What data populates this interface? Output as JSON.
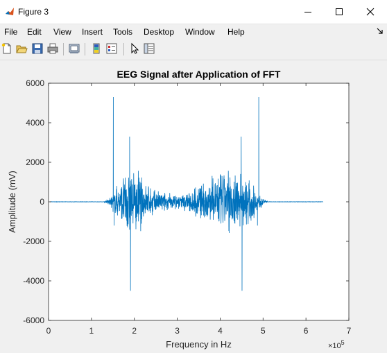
{
  "window": {
    "title": "Figure 3",
    "minimize_icon": "minimize-icon",
    "maximize_icon": "maximize-icon",
    "close_icon": "close-icon"
  },
  "menu": {
    "items": [
      "File",
      "Edit",
      "View",
      "Insert",
      "Tools",
      "Desktop",
      "Window",
      "Help"
    ]
  },
  "toolbar": {
    "icons": [
      "new-figure-icon",
      "open-file-icon",
      "save-icon",
      "print-icon",
      "link-plot-icon",
      "colorbar-icon",
      "legend-icon",
      "edit-plot-icon",
      "property-inspector-icon"
    ]
  },
  "chart_data": {
    "type": "line",
    "title": "EEG Signal after Application of FFT",
    "xlabel": "Frequency in Hz",
    "ylabel": "Amplitude (mV)",
    "x_exponent_label": "×10^5",
    "xlim": [
      0,
      7
    ],
    "ylim": [
      -6000,
      6000
    ],
    "x_ticks": [
      0,
      1,
      2,
      3,
      4,
      5,
      6,
      7
    ],
    "y_ticks": [
      -6000,
      -4000,
      -2000,
      0,
      2000,
      4000,
      6000
    ],
    "x_tick_labels": [
      "0",
      "1",
      "2",
      "3",
      "4",
      "5",
      "6",
      "7"
    ],
    "y_tick_labels": [
      "-6000",
      "-4000",
      "-2000",
      "0",
      "2000",
      "4000",
      "6000"
    ],
    "line_color": "#0072bd",
    "grid": false,
    "series": [
      {
        "signal_extent": [
          0.03,
          6.4
        ],
        "noise_band": [
          1.3,
          5.1
        ],
        "envelope": [
          [
            1.3,
            30
          ],
          [
            1.45,
            300
          ],
          [
            1.65,
            1200
          ],
          [
            1.85,
            1900
          ],
          [
            2.1,
            1700
          ],
          [
            2.3,
            1000
          ],
          [
            2.5,
            650
          ],
          [
            2.75,
            500
          ],
          [
            3.0,
            400
          ],
          [
            3.25,
            550
          ],
          [
            3.5,
            950
          ],
          [
            3.75,
            1350
          ],
          [
            4.0,
            1800
          ],
          [
            4.3,
            1850
          ],
          [
            4.55,
            1550
          ],
          [
            4.75,
            1000
          ],
          [
            4.9,
            450
          ],
          [
            5.05,
            120
          ],
          [
            5.1,
            30
          ]
        ],
        "spikes": [
          {
            "x": 1.51,
            "y": 5300
          },
          {
            "x": 1.53,
            "y": -1200
          },
          {
            "x": 1.89,
            "y": 3300
          },
          {
            "x": 1.91,
            "y": -4500
          },
          {
            "x": 4.49,
            "y": 3300
          },
          {
            "x": 4.51,
            "y": -4500
          },
          {
            "x": 4.87,
            "y": -1200
          },
          {
            "x": 4.9,
            "y": 5300
          }
        ]
      }
    ]
  }
}
